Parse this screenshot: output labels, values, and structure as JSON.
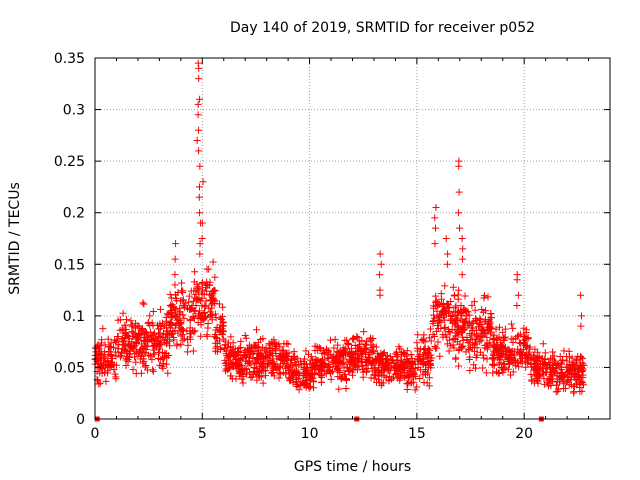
{
  "chart_data": {
    "type": "scatter",
    "title": "Day 140 of 2019, SRMTID for receiver p052",
    "xlabel": "GPS time / hours",
    "ylabel": "SRMTID / TECUs",
    "xlim": [
      0,
      24
    ],
    "ylim": [
      0,
      0.35
    ],
    "xticks": [
      0,
      5,
      10,
      15,
      20
    ],
    "xtick_labels": [
      "0",
      "5",
      "10",
      "15",
      "20"
    ],
    "yticks": [
      0,
      0.05,
      0.1,
      0.15,
      0.2,
      0.25,
      0.3,
      0.35
    ],
    "ytick_labels": [
      "0",
      "0.05",
      "0.1",
      "0.15",
      "0.2",
      "0.25",
      "0.3",
      "0.35"
    ],
    "grid": true,
    "marker": "+",
    "color": "#ff0000",
    "gap_markers_x": [
      0.1,
      12.2,
      20.8
    ],
    "series": [
      {
        "name": "SRMTID",
        "profile": [
          {
            "x_start": 0.0,
            "x_end": 1.0,
            "mean": 0.058,
            "spread": 0.02
          },
          {
            "x_start": 1.0,
            "x_end": 3.5,
            "mean": 0.075,
            "spread": 0.025
          },
          {
            "x_start": 3.5,
            "x_end": 4.6,
            "mean": 0.1,
            "spread": 0.03
          },
          {
            "x_start": 4.6,
            "x_end": 5.6,
            "mean": 0.115,
            "spread": 0.03
          },
          {
            "x_start": 5.6,
            "x_end": 6.0,
            "mean": 0.085,
            "spread": 0.02
          },
          {
            "x_start": 6.0,
            "x_end": 9.0,
            "mean": 0.058,
            "spread": 0.018
          },
          {
            "x_start": 9.0,
            "x_end": 10.2,
            "mean": 0.045,
            "spread": 0.015
          },
          {
            "x_start": 10.2,
            "x_end": 12.0,
            "mean": 0.055,
            "spread": 0.017
          },
          {
            "x_start": 12.0,
            "x_end": 13.0,
            "mean": 0.06,
            "spread": 0.02
          },
          {
            "x_start": 13.0,
            "x_end": 15.0,
            "mean": 0.05,
            "spread": 0.017
          },
          {
            "x_start": 15.0,
            "x_end": 15.7,
            "mean": 0.06,
            "spread": 0.02
          },
          {
            "x_start": 15.7,
            "x_end": 17.1,
            "mean": 0.095,
            "spread": 0.03
          },
          {
            "x_start": 17.1,
            "x_end": 18.5,
            "mean": 0.085,
            "spread": 0.025
          },
          {
            "x_start": 18.5,
            "x_end": 20.3,
            "mean": 0.065,
            "spread": 0.02
          },
          {
            "x_start": 20.3,
            "x_end": 21.0,
            "mean": 0.05,
            "spread": 0.017
          },
          {
            "x_start": 21.0,
            "x_end": 22.8,
            "mean": 0.045,
            "spread": 0.017
          }
        ],
        "spikes": [
          {
            "x": 3.75,
            "y": [
              0.17,
              0.155,
              0.14,
              0.13
            ]
          },
          {
            "x": 4.8,
            "y": [
              0.27,
              0.28,
              0.295,
              0.305
            ]
          },
          {
            "x": 4.85,
            "y": [
              0.345,
              0.34,
              0.33,
              0.31,
              0.26,
              0.245
            ]
          },
          {
            "x": 4.9,
            "y": [
              0.225,
              0.215,
              0.2,
              0.19,
              0.17,
              0.16
            ]
          },
          {
            "x": 5.0,
            "y": [
              0.23,
              0.19,
              0.175
            ]
          },
          {
            "x": 13.3,
            "y": [
              0.16,
              0.15,
              0.14,
              0.125,
              0.12
            ]
          },
          {
            "x": 15.85,
            "y": [
              0.205,
              0.195,
              0.185,
              0.17
            ]
          },
          {
            "x": 16.4,
            "y": [
              0.175,
              0.16,
              0.15
            ]
          },
          {
            "x": 16.95,
            "y": [
              0.25,
              0.245,
              0.22,
              0.2,
              0.185
            ]
          },
          {
            "x": 17.1,
            "y": [
              0.175,
              0.165,
              0.155,
              0.14
            ]
          },
          {
            "x": 19.7,
            "y": [
              0.14,
              0.135,
              0.12,
              0.11
            ]
          },
          {
            "x": 22.65,
            "y": [
              0.12,
              0.1,
              0.09
            ]
          }
        ]
      }
    ]
  }
}
